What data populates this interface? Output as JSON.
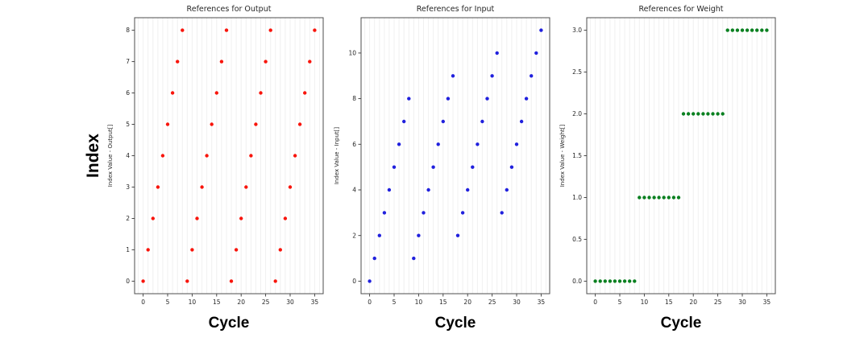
{
  "figure": {
    "y_axis_label": "Index",
    "x_axis_label": "Cycle",
    "background_color": "#ffffff",
    "frame_color": "#4d4d4d",
    "grid_color": "#f0f0f0"
  },
  "chart_data": [
    {
      "type": "scatter",
      "title": "References for Output",
      "ylabel": "Index Value - Output[]",
      "xlabel": "Cycle",
      "dot_color": "#f8150c",
      "grid": "vertical gridlines at every cycle, light gray",
      "xlim": [
        -1.75,
        36.75
      ],
      "ylim": [
        -0.4,
        8.4
      ],
      "xticks": [
        0,
        5,
        10,
        15,
        20,
        25,
        30,
        35
      ],
      "xtick_labels": [
        "0",
        "5",
        "10",
        "15",
        "20",
        "25",
        "30",
        "35"
      ],
      "yticks": [
        0,
        1,
        2,
        3,
        4,
        5,
        6,
        7,
        8
      ],
      "ytick_labels": [
        "0",
        "1",
        "2",
        "3",
        "4",
        "5",
        "6",
        "7",
        "8"
      ],
      "x": [
        0,
        1,
        2,
        3,
        4,
        5,
        6,
        7,
        8,
        9,
        10,
        11,
        12,
        13,
        14,
        15,
        16,
        17,
        18,
        19,
        20,
        21,
        22,
        23,
        24,
        25,
        26,
        27,
        28,
        29,
        30,
        31,
        32,
        33,
        34,
        35
      ],
      "y": [
        0,
        1,
        2,
        3,
        4,
        5,
        6,
        7,
        8,
        0,
        1,
        2,
        3,
        4,
        5,
        6,
        7,
        8,
        0,
        1,
        2,
        3,
        4,
        5,
        6,
        7,
        8,
        0,
        1,
        2,
        3,
        4,
        5,
        6,
        7,
        8
      ]
    },
    {
      "type": "scatter",
      "title": "References for Input",
      "ylabel": "Index Value - Input[]",
      "xlabel": "Cycle",
      "dot_color": "#2020dd",
      "grid": "vertical gridlines at every cycle, light gray",
      "xlim": [
        -1.75,
        36.75
      ],
      "ylim": [
        -0.55,
        11.55
      ],
      "xticks": [
        0,
        5,
        10,
        15,
        20,
        25,
        30,
        35
      ],
      "xtick_labels": [
        "0",
        "5",
        "10",
        "15",
        "20",
        "25",
        "30",
        "35"
      ],
      "yticks": [
        0,
        2,
        4,
        6,
        8,
        10
      ],
      "ytick_labels": [
        "0",
        "2",
        "4",
        "6",
        "8",
        "10"
      ],
      "x": [
        0,
        1,
        2,
        3,
        4,
        5,
        6,
        7,
        8,
        9,
        10,
        11,
        12,
        13,
        14,
        15,
        16,
        17,
        18,
        19,
        20,
        21,
        22,
        23,
        24,
        25,
        26,
        27,
        28,
        29,
        30,
        31,
        32,
        33,
        34,
        35
      ],
      "y": [
        0,
        1,
        2,
        3,
        4,
        5,
        6,
        7,
        8,
        1,
        2,
        3,
        4,
        5,
        6,
        7,
        8,
        9,
        2,
        3,
        4,
        5,
        6,
        7,
        8,
        9,
        10,
        3,
        4,
        5,
        6,
        7,
        8,
        9,
        10,
        11
      ]
    },
    {
      "type": "scatter",
      "title": "References for Weight",
      "ylabel": "Index Value - Weight[]",
      "xlabel": "Cycle",
      "dot_color": "#0a8020",
      "grid": "vertical gridlines at every cycle, light gray",
      "xlim": [
        -1.75,
        36.75
      ],
      "ylim": [
        -0.15,
        3.15
      ],
      "xticks": [
        0,
        5,
        10,
        15,
        20,
        25,
        30,
        35
      ],
      "xtick_labels": [
        "0",
        "5",
        "10",
        "15",
        "20",
        "25",
        "30",
        "35"
      ],
      "yticks": [
        0,
        0.5,
        1,
        1.5,
        2,
        2.5,
        3
      ],
      "ytick_labels": [
        "0.0",
        "0.5",
        "1.0",
        "1.5",
        "2.0",
        "2.5",
        "3.0"
      ],
      "x": [
        0,
        1,
        2,
        3,
        4,
        5,
        6,
        7,
        8,
        9,
        10,
        11,
        12,
        13,
        14,
        15,
        16,
        17,
        18,
        19,
        20,
        21,
        22,
        23,
        24,
        25,
        26,
        27,
        28,
        29,
        30,
        31,
        32,
        33,
        34,
        35
      ],
      "y": [
        0,
        0,
        0,
        0,
        0,
        0,
        0,
        0,
        0,
        1,
        1,
        1,
        1,
        1,
        1,
        1,
        1,
        1,
        2,
        2,
        2,
        2,
        2,
        2,
        2,
        2,
        2,
        3,
        3,
        3,
        3,
        3,
        3,
        3,
        3,
        3
      ]
    }
  ]
}
